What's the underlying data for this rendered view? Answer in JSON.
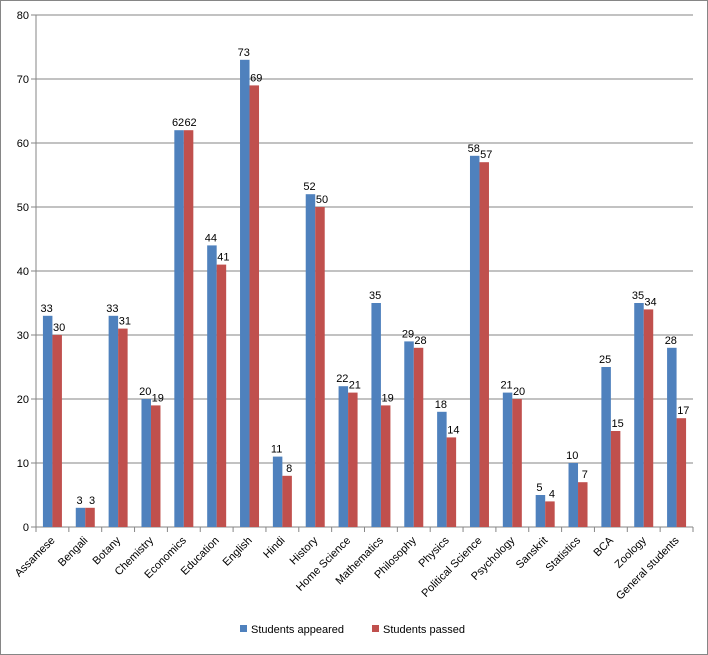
{
  "chart_data": {
    "type": "bar",
    "categories": [
      "Assamese",
      "Bengali",
      "Botany",
      "Chemistry",
      "Economics",
      "Education",
      "English",
      "Hindi",
      "History",
      "Home Science",
      "Mathematics",
      "Philosophy",
      "Physics",
      "Political Science",
      "Psychology",
      "Sanskrit",
      "Statistics",
      "BCA",
      "Zoology",
      "General students"
    ],
    "series": [
      {
        "name": "Students appeared",
        "color": "#4f81bd",
        "values": [
          33,
          3,
          33,
          20,
          62,
          44,
          73,
          11,
          52,
          22,
          35,
          29,
          18,
          58,
          21,
          5,
          10,
          25,
          35,
          28
        ]
      },
      {
        "name": "Students passed",
        "color": "#c0504d",
        "values": [
          30,
          3,
          31,
          19,
          62,
          41,
          69,
          8,
          50,
          21,
          19,
          28,
          14,
          57,
          20,
          4,
          7,
          15,
          34,
          17
        ]
      }
    ],
    "ylim": [
      0,
      80
    ],
    "yticks": [
      0,
      10,
      20,
      30,
      40,
      50,
      60,
      70,
      80
    ],
    "grid": true,
    "legend_position": "bottom",
    "data_labels": true
  }
}
